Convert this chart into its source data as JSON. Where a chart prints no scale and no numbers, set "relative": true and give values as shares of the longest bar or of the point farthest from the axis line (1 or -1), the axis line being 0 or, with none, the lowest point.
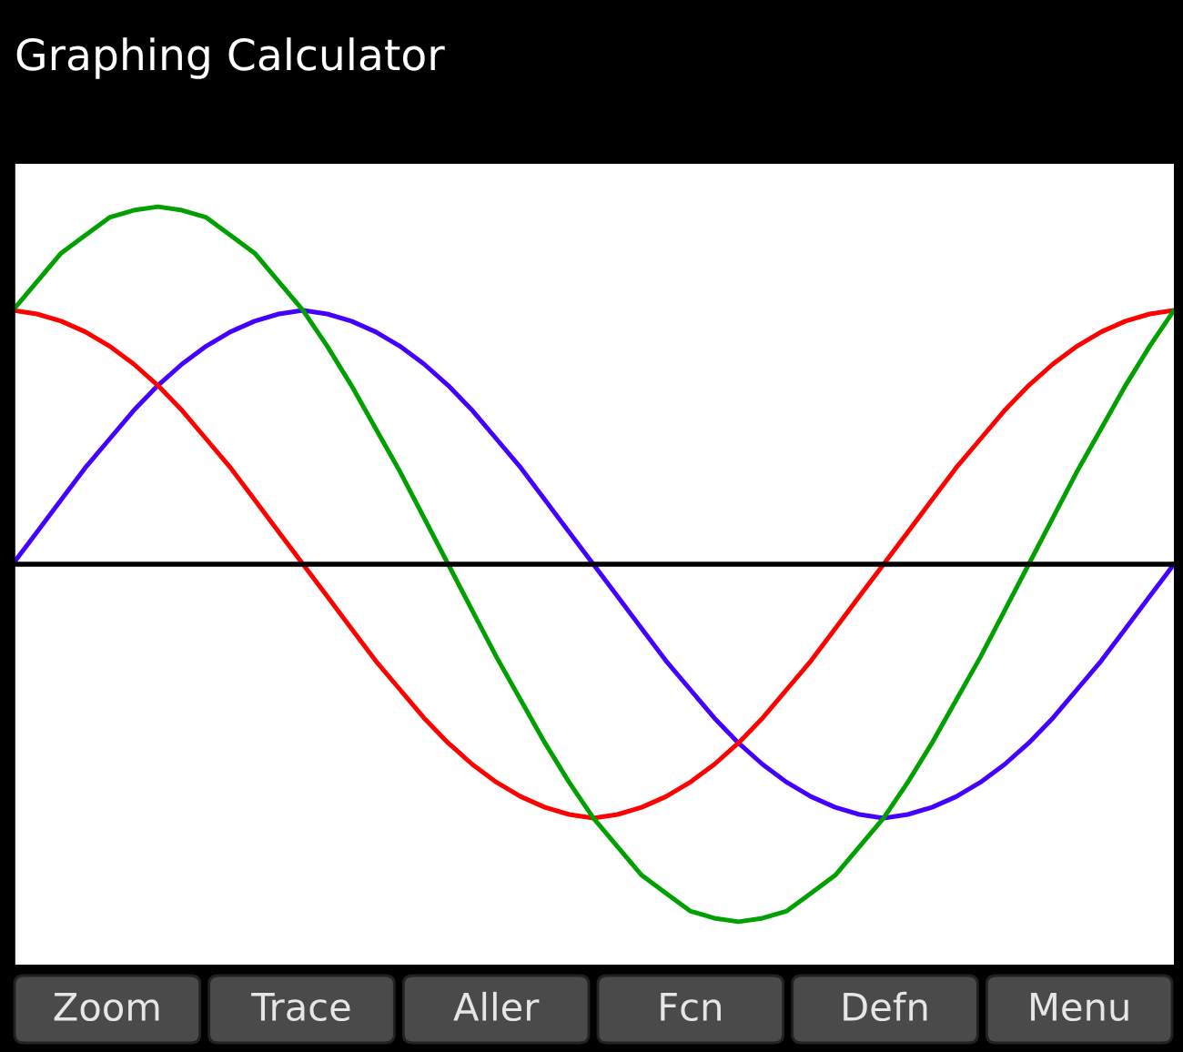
{
  "chart_data": {
    "type": "line",
    "title": "Graphing Calculator",
    "relative": true,
    "categories": [
      null,
      null,
      null,
      null,
      null,
      null,
      null,
      null,
      null,
      null,
      null,
      null,
      null,
      null,
      null,
      null,
      null,
      null,
      null,
      null,
      null,
      null,
      null,
      null,
      null,
      null,
      null,
      null,
      null,
      null,
      null,
      null,
      null,
      null,
      null,
      null,
      null,
      null,
      null,
      null,
      null,
      null,
      null,
      null,
      null,
      null,
      null,
      null,
      null
    ],
    "series": [
      {
        "color": "#4400ff",
        "values": [
          0,
          0.09,
          0.18,
          0.27,
          0.35,
          0.43,
          0.5,
          0.56,
          0.61,
          0.65,
          0.68,
          0.7,
          0.71,
          0.7,
          0.68,
          0.65,
          0.61,
          0.56,
          0.5,
          0.43,
          0.35,
          0.27,
          0.18,
          0.09,
          0,
          -0.09,
          -0.18,
          -0.27,
          -0.35,
          -0.43,
          -0.5,
          -0.56,
          -0.61,
          -0.65,
          -0.68,
          -0.7,
          -0.71,
          -0.7,
          -0.68,
          -0.65,
          -0.61,
          -0.56,
          -0.5,
          -0.43,
          -0.35,
          -0.27,
          -0.18,
          -0.09,
          0
        ]
      },
      {
        "color": "#ff0000",
        "values": [
          0.71,
          0.7,
          0.68,
          0.65,
          0.61,
          0.56,
          0.5,
          0.43,
          0.35,
          0.27,
          0.18,
          0.09,
          0,
          -0.09,
          -0.18,
          -0.27,
          -0.35,
          -0.43,
          -0.5,
          -0.56,
          -0.61,
          -0.65,
          -0.68,
          -0.7,
          -0.71,
          -0.7,
          -0.68,
          -0.65,
          -0.61,
          -0.56,
          -0.5,
          -0.43,
          -0.35,
          -0.27,
          -0.18,
          -0.09,
          0,
          0.09,
          0.18,
          0.27,
          0.35,
          0.43,
          0.5,
          0.56,
          0.61,
          0.65,
          0.68,
          0.7,
          0.71
        ]
      },
      {
        "color": "#00a000",
        "values": [
          0.71,
          0.79,
          0.87,
          0.92,
          0.97,
          0.99,
          1,
          0.99,
          0.97,
          0.92,
          0.87,
          0.79,
          0.71,
          0.61,
          0.5,
          0.38,
          0.26,
          0.13,
          0,
          -0.13,
          -0.26,
          -0.38,
          -0.5,
          -0.61,
          -0.71,
          -0.79,
          -0.87,
          -0.92,
          -0.97,
          -0.99,
          -1,
          -0.99,
          -0.97,
          -0.92,
          -0.87,
          -0.79,
          -0.71,
          -0.61,
          -0.5,
          -0.38,
          -0.26,
          -0.13,
          0,
          0.13,
          0.26,
          0.38,
          0.5,
          0.61,
          0.71
        ]
      }
    ],
    "annotations": [
      "Zoom",
      "Trace",
      "Aller",
      "Fcn",
      "Defn",
      "Menu"
    ]
  }
}
